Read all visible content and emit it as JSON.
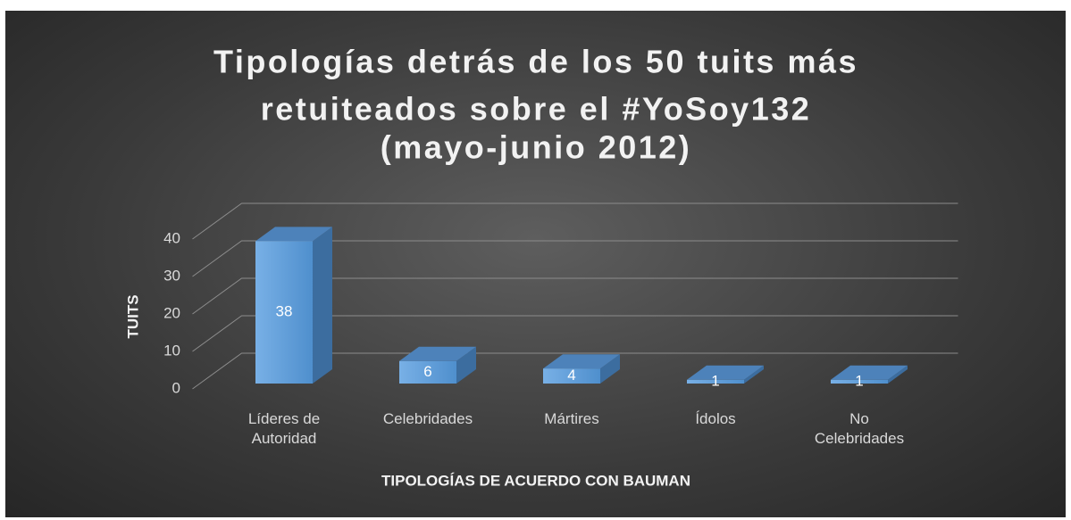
{
  "chart_data": {
    "type": "bar3d",
    "title": [
      "Tipologías detrás de los 50 tuits más",
      "retuiteados sobre el #YoSoy132",
      "(mayo-junio 2012)"
    ],
    "categories": [
      "Líderes de Autoridad",
      "Celebridades",
      "Mártires",
      "Ídolos",
      "No Celebridades"
    ],
    "values": [
      38,
      6,
      4,
      1,
      1
    ],
    "color": "#5b9bd5",
    "ylim": [
      0,
      40
    ],
    "yticks": [
      0,
      10,
      20,
      30,
      40
    ],
    "grid": true,
    "ylabel": "TUITS",
    "xlabel": "TIPOLOGÍAS DE ACUERDO CON BAUMAN"
  }
}
